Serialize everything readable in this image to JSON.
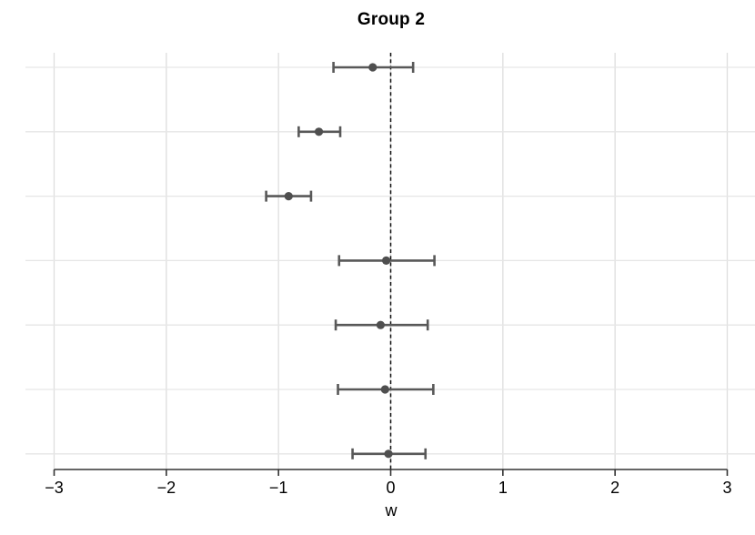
{
  "chart_data": {
    "type": "scatter",
    "subtype": "forest-plot-horizontal-error-bars",
    "title": "Group 2",
    "xlabel": "w",
    "ylabel": "",
    "xlim": [
      -3,
      3
    ],
    "x_ticks": [
      -3,
      -2,
      -1,
      0,
      1,
      2,
      3
    ],
    "x_tick_labels": [
      "−3",
      "−2",
      "−1",
      "0",
      "1",
      "2",
      "3"
    ],
    "grid": true,
    "legend": "none",
    "zero_line": {
      "x": 0,
      "style": "dashed"
    },
    "rows_top_to_bottom": [
      {
        "row": 1,
        "estimate": -0.16,
        "ci_low": -0.51,
        "ci_high": 0.2
      },
      {
        "row": 2,
        "estimate": -0.64,
        "ci_low": -0.82,
        "ci_high": -0.45
      },
      {
        "row": 3,
        "estimate": -0.91,
        "ci_low": -1.11,
        "ci_high": -0.71
      },
      {
        "row": 4,
        "estimate": -0.04,
        "ci_low": -0.46,
        "ci_high": 0.39
      },
      {
        "row": 5,
        "estimate": -0.09,
        "ci_low": -0.49,
        "ci_high": 0.33
      },
      {
        "row": 6,
        "estimate": -0.05,
        "ci_low": -0.47,
        "ci_high": 0.38
      },
      {
        "row": 7,
        "estimate": -0.02,
        "ci_low": -0.34,
        "ci_high": 0.31
      }
    ],
    "colors": {
      "point": "#4f4f4f",
      "error_bar": "#585858",
      "gridline_h": "#e6e6e6",
      "gridline_v": "#dedede",
      "axis": "#333333",
      "zero_line": "#111111",
      "background": "#ffffff",
      "text": "#000000"
    }
  }
}
